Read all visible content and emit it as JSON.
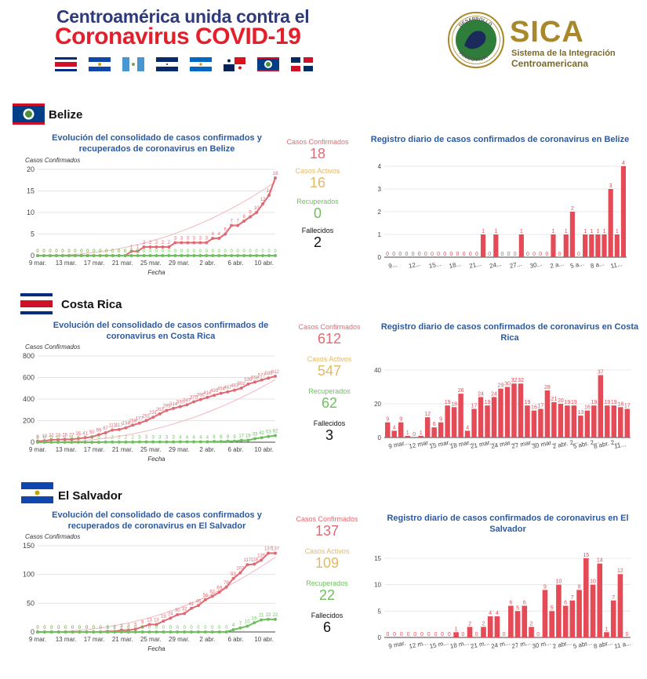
{
  "header": {
    "line1": "Centroamérica unida contra el",
    "line2": "Coronavirus COVID-19",
    "flag_icons": [
      "costa-rica-flag-icon",
      "el-salvador-flag-icon",
      "guatemala-flag-icon",
      "honduras-flag-icon",
      "nicaragua-flag-icon",
      "panama-flag-icon",
      "belize-flag-icon",
      "dominican-republic-flag-icon"
    ]
  },
  "sica": {
    "name": "SICA",
    "subtitle1": "Sistema de la Integración",
    "subtitle2": "Centroamericana",
    "seal_top": "DESARROLLO",
    "seal_bottom": "DEMOCRACIA",
    "colors": {
      "gold": "#a9882b",
      "green": "#2f7d3a"
    }
  },
  "labels": {
    "confirmed": "Casos Confirmados",
    "active": "Casos Activos",
    "recovered": "Recuperados",
    "deaths": "Fallecidos",
    "fecha": "Fecha",
    "y_label": "Casos Confirmados"
  },
  "colors": {
    "confirmed": "#e06a73",
    "active": "#e3b866",
    "recovered": "#6fbf5f",
    "bar": "#e54b57",
    "title": "#2c5aa0"
  },
  "countries": [
    {
      "name": "Belize",
      "stats": {
        "confirmed": "18",
        "active": "16",
        "recovered": "0",
        "deaths": "2"
      },
      "cumulative_title": "Evolución del consolidado de casos confirmados y recuperados de coronavirus en Belize",
      "daily_title": "Registro diario de casos confirmados de coronavirus en Belize"
    },
    {
      "name": "Costa Rica",
      "stats": {
        "confirmed": "612",
        "active": "547",
        "recovered": "62",
        "deaths": "3"
      },
      "cumulative_title": "Evolución del consolidado de casos confirmados de coronavirus en Costa Rica",
      "daily_title": "Registro diario de casos confirmados de coronavirus en Costa Rica"
    },
    {
      "name": "El Salvador",
      "stats": {
        "confirmed": "137",
        "active": "109",
        "recovered": "22",
        "deaths": "6"
      },
      "cumulative_title": "Evolución del consolidado de casos confirmados y recuperados de coronavirus en El Salvador",
      "daily_title": "Registro diario de casos confirmados de coronavirus en El Salvador"
    }
  ],
  "chart_data": [
    {
      "type": "line",
      "title": "Evolución del consolidado de casos confirmados y recuperados de coronavirus en Belize",
      "xlabel": "Fecha",
      "ylabel": "Casos Confirmados",
      "ylim": [
        0,
        20
      ],
      "yticks": [
        0,
        5,
        10,
        15,
        20
      ],
      "xticks": [
        "9 mar.",
        "13 mar.",
        "17 mar.",
        "21 mar.",
        "25 mar.",
        "29 mar.",
        "2 abr.",
        "6 abr.",
        "10 abr."
      ],
      "series": [
        {
          "name": "Casos Confirmados",
          "values": [
            0,
            0,
            0,
            0,
            0,
            0,
            0,
            0,
            0,
            0,
            0,
            0,
            0,
            0,
            0,
            1,
            1,
            2,
            2,
            2,
            2,
            2,
            3,
            3,
            3,
            3,
            3,
            3,
            4,
            4,
            5,
            7,
            7,
            8,
            9,
            10,
            12,
            14,
            18
          ]
        },
        {
          "name": "Recuperados",
          "values": [
            0,
            0,
            0,
            0,
            0,
            0,
            0,
            0,
            0,
            0,
            0,
            0,
            0,
            0,
            0,
            0,
            0,
            0,
            0,
            0,
            0,
            0,
            0,
            0,
            0,
            0,
            0,
            0,
            0,
            0,
            0,
            0,
            0,
            0,
            0,
            0,
            0,
            0,
            0
          ]
        }
      ]
    },
    {
      "type": "bar",
      "title": "Registro diario de casos confirmados de coronavirus en Belize",
      "ylim": [
        0,
        4
      ],
      "yticks": [
        0,
        1,
        2,
        3,
        4
      ],
      "xticks": [
        "9...",
        "12...",
        "15...",
        "18...",
        "21...",
        "24...",
        "27...",
        "30...",
        "2 a...",
        "5 a...",
        "8 a...",
        "11..."
      ],
      "values": [
        0,
        0,
        0,
        0,
        0,
        0,
        0,
        0,
        0,
        0,
        0,
        0,
        0,
        0,
        0,
        1,
        0,
        1,
        0,
        0,
        0,
        1,
        0,
        0,
        0,
        0,
        1,
        0,
        1,
        2,
        0,
        1,
        1,
        1,
        1,
        3,
        1,
        4
      ]
    },
    {
      "type": "line",
      "title": "Evolución del consolidado de casos confirmados de coronavirus en Costa Rica",
      "xlabel": "Fecha",
      "ylabel": "Casos Confirmados",
      "ylim": [
        0,
        800
      ],
      "yticks": [
        0,
        200,
        400,
        600,
        800
      ],
      "xticks": [
        "9 mar.",
        "13 mar.",
        "17 mar.",
        "21 mar.",
        "25 mar.",
        "29 mar.",
        "2 abr.",
        "6 abr.",
        "10 abr."
      ],
      "series": [
        {
          "name": "Casos Confirmados",
          "values": [
            9,
            13,
            22,
            23,
            26,
            27,
            35,
            41,
            50,
            69,
            87,
            113,
            117,
            134,
            158,
            177,
            201,
            231,
            263,
            295,
            314,
            330,
            347,
            375,
            396,
            416,
            435,
            454,
            467,
            483,
            502,
            539,
            558,
            577,
            595,
            612
          ]
        },
        {
          "name": "Recuperados",
          "values": [
            0,
            0,
            0,
            0,
            0,
            0,
            0,
            0,
            0,
            0,
            2,
            2,
            2,
            2,
            2,
            3,
            3,
            3,
            3,
            3,
            3,
            4,
            4,
            4,
            4,
            4,
            6,
            6,
            9,
            9,
            17,
            18,
            33,
            42,
            53,
            62
          ]
        }
      ]
    },
    {
      "type": "bar",
      "title": "Registro diario de casos confirmados de coronavirus en Costa Rica",
      "ylim": [
        0,
        40
      ],
      "yticks": [
        0,
        20,
        40
      ],
      "xticks": [
        "9 mar...",
        "12 mar...",
        "15 mar...",
        "18 mar...",
        "21 mar...",
        "24 mar...",
        "27 mar...",
        "30 mar...",
        "2 abr. 2...",
        "5 abr. 2...",
        "8 abr. 2...",
        "11..."
      ],
      "values": [
        9,
        4,
        9,
        1,
        0,
        1,
        12,
        6,
        9,
        19,
        18,
        26,
        4,
        17,
        24,
        19,
        24,
        29,
        30,
        32,
        32,
        19,
        16,
        17,
        28,
        21,
        20,
        19,
        19,
        13,
        16,
        19,
        37,
        19,
        19,
        18,
        17
      ]
    },
    {
      "type": "line",
      "title": "Evolución del consolidado de casos confirmados y recuperados de coronavirus en El Salvador",
      "xlabel": "Fecha",
      "ylabel": "Casos Confirmados",
      "ylim": [
        0,
        150
      ],
      "yticks": [
        0,
        50,
        100,
        150
      ],
      "xticks": [
        "9 mar.",
        "13 mar.",
        "17 mar.",
        "21 mar.",
        "25 mar.",
        "29 mar.",
        "2 abr.",
        "6 abr.",
        "10 abr."
      ],
      "series": [
        {
          "name": "Casos Confirmados",
          "values": [
            0,
            0,
            0,
            0,
            0,
            0,
            0,
            0,
            0,
            0,
            1,
            1,
            3,
            3,
            5,
            9,
            13,
            13,
            19,
            24,
            30,
            32,
            41,
            46,
            56,
            62,
            69,
            78,
            93,
            103,
            117,
            118,
            125,
            137,
            137
          ]
        },
        {
          "name": "Recuperados",
          "values": [
            0,
            0,
            0,
            0,
            0,
            0,
            0,
            0,
            0,
            0,
            0,
            0,
            0,
            0,
            0,
            0,
            0,
            0,
            0,
            0,
            0,
            0,
            0,
            0,
            0,
            0,
            0,
            0,
            4,
            7,
            10,
            16,
            21,
            22,
            22
          ]
        }
      ]
    },
    {
      "type": "bar",
      "title": "Registro diario de casos confirmados de coronavirus en El Salvador",
      "ylim": [
        0,
        15
      ],
      "yticks": [
        0,
        5,
        10,
        15
      ],
      "xticks": [
        "9 mar.",
        "12 m...",
        "15 m...",
        "18 m...",
        "21 m...",
        "24 m...",
        "27 m...",
        "30 m...",
        "2 abr...",
        "5 abr...",
        "8 abr...",
        "11 a..."
      ],
      "values": [
        0,
        0,
        0,
        0,
        0,
        0,
        0,
        0,
        0,
        0,
        1,
        0,
        2,
        0,
        2,
        4,
        4,
        0,
        6,
        5,
        6,
        2,
        0,
        9,
        5,
        10,
        6,
        7,
        9,
        15,
        10,
        14,
        1,
        7,
        12,
        0
      ]
    }
  ]
}
